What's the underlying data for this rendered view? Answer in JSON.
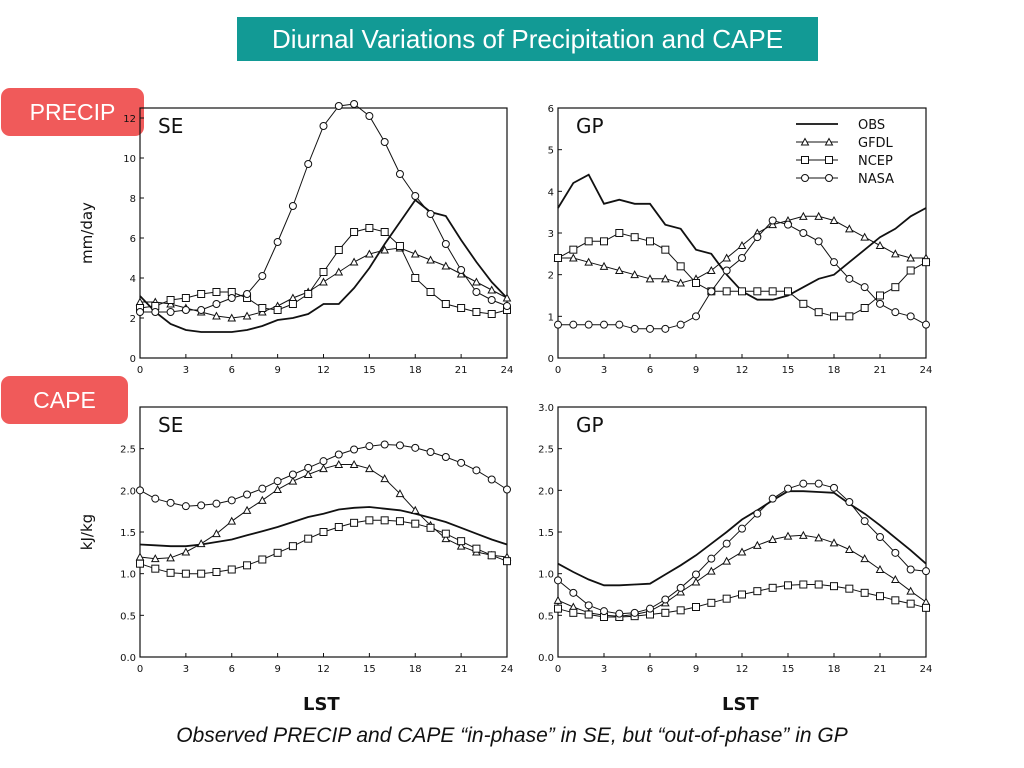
{
  "header": {
    "title": "Diurnal Variations of Precipitation and CAPE"
  },
  "tags": {
    "precip": "PRECIP",
    "cape": "CAPE"
  },
  "caption": "Observed PRECIP and CAPE “in-phase” in SE, but “out-of-phase” in GP",
  "xlabel": "LST",
  "chart_data": [
    {
      "type": "line",
      "title": "SE",
      "ylabel": "mm/day",
      "xticks": [
        "0",
        "3",
        "6",
        "9",
        "12",
        "15",
        "18",
        "21",
        "24"
      ],
      "yticks": [
        "0",
        "2",
        "4",
        "6",
        "8",
        "10",
        "12"
      ],
      "xlim": [
        0,
        24
      ],
      "ylim": [
        0,
        12.5
      ],
      "x": [
        0,
        1,
        2,
        3,
        4,
        5,
        6,
        7,
        8,
        9,
        10,
        11,
        12,
        13,
        14,
        15,
        16,
        17,
        18,
        19,
        20,
        21,
        22,
        23,
        24
      ],
      "series": [
        {
          "name": "OBS",
          "marker": "none",
          "values": [
            3.1,
            2.3,
            1.7,
            1.4,
            1.3,
            1.3,
            1.3,
            1.4,
            1.6,
            1.9,
            2.0,
            2.2,
            2.7,
            2.7,
            3.5,
            4.5,
            5.7,
            6.8,
            7.9,
            7.3,
            7.1,
            5.9,
            4.8,
            3.8,
            3.0
          ]
        },
        {
          "name": "GFDL",
          "marker": "triangle",
          "values": [
            2.8,
            2.8,
            2.7,
            2.5,
            2.3,
            2.1,
            2.0,
            2.1,
            2.3,
            2.6,
            3.0,
            3.3,
            3.8,
            4.3,
            4.8,
            5.2,
            5.4,
            5.5,
            5.2,
            4.9,
            4.6,
            4.2,
            3.8,
            3.4,
            3.0
          ]
        },
        {
          "name": "NCEP",
          "marker": "square",
          "values": [
            2.5,
            2.6,
            2.9,
            3.0,
            3.2,
            3.3,
            3.3,
            3.0,
            2.5,
            2.4,
            2.7,
            3.2,
            4.3,
            5.4,
            6.3,
            6.5,
            6.3,
            5.6,
            4.0,
            3.3,
            2.7,
            2.5,
            2.3,
            2.2,
            2.4
          ]
        },
        {
          "name": "NASA",
          "marker": "circle",
          "values": [
            2.3,
            2.3,
            2.3,
            2.4,
            2.4,
            2.7,
            3.0,
            3.2,
            4.1,
            5.8,
            7.6,
            9.7,
            11.6,
            12.6,
            12.7,
            12.1,
            10.8,
            9.2,
            8.1,
            7.2,
            5.7,
            4.4,
            3.3,
            2.9,
            2.6
          ]
        }
      ]
    },
    {
      "type": "line",
      "title": "GP",
      "ylabel": "",
      "xticks": [
        "0",
        "3",
        "6",
        "9",
        "12",
        "15",
        "18",
        "21",
        "24"
      ],
      "yticks": [
        "0",
        "1",
        "2",
        "3",
        "4",
        "5",
        "6"
      ],
      "xlim": [
        0,
        24
      ],
      "ylim": [
        0,
        6
      ],
      "legend": "top-right",
      "x": [
        0,
        1,
        2,
        3,
        4,
        5,
        6,
        7,
        8,
        9,
        10,
        11,
        12,
        13,
        14,
        15,
        16,
        17,
        18,
        19,
        20,
        21,
        22,
        23,
        24
      ],
      "series": [
        {
          "name": "OBS",
          "marker": "none",
          "values": [
            3.6,
            4.2,
            4.4,
            3.7,
            3.8,
            3.7,
            3.7,
            3.2,
            3.1,
            2.6,
            2.5,
            2.0,
            1.6,
            1.4,
            1.4,
            1.5,
            1.7,
            1.9,
            2.0,
            2.3,
            2.6,
            2.9,
            3.1,
            3.4,
            3.6
          ]
        },
        {
          "name": "GFDL",
          "marker": "triangle",
          "values": [
            2.4,
            2.4,
            2.3,
            2.2,
            2.1,
            2.0,
            1.9,
            1.9,
            1.8,
            1.9,
            2.1,
            2.4,
            2.7,
            3.0,
            3.2,
            3.3,
            3.4,
            3.4,
            3.3,
            3.1,
            2.9,
            2.7,
            2.5,
            2.4,
            2.4
          ]
        },
        {
          "name": "NCEP",
          "marker": "square",
          "values": [
            2.4,
            2.6,
            2.8,
            2.8,
            3.0,
            2.9,
            2.8,
            2.6,
            2.2,
            1.8,
            1.6,
            1.6,
            1.6,
            1.6,
            1.6,
            1.6,
            1.3,
            1.1,
            1.0,
            1.0,
            1.2,
            1.5,
            1.7,
            2.1,
            2.3
          ]
        },
        {
          "name": "NASA",
          "marker": "circle",
          "values": [
            0.8,
            0.8,
            0.8,
            0.8,
            0.8,
            0.7,
            0.7,
            0.7,
            0.8,
            1.0,
            1.6,
            2.1,
            2.4,
            2.9,
            3.3,
            3.2,
            3.0,
            2.8,
            2.3,
            1.9,
            1.7,
            1.3,
            1.1,
            1.0,
            0.8
          ]
        }
      ]
    },
    {
      "type": "line",
      "title": "SE",
      "ylabel": "kJ/kg",
      "xticks": [
        "0",
        "3",
        "6",
        "9",
        "12",
        "15",
        "18",
        "21",
        "24"
      ],
      "yticks": [
        "0.0",
        "0.5",
        "1.0",
        "1.5",
        "2.0",
        "2.5"
      ],
      "xlim": [
        0,
        24
      ],
      "ylim": [
        0,
        3.0
      ],
      "x": [
        0,
        1,
        2,
        3,
        4,
        5,
        6,
        7,
        8,
        9,
        10,
        11,
        12,
        13,
        14,
        15,
        16,
        17,
        18,
        19,
        20,
        21,
        22,
        23,
        24
      ],
      "series": [
        {
          "name": "OBS",
          "marker": "none",
          "values": [
            1.35,
            1.34,
            1.33,
            1.33,
            1.35,
            1.38,
            1.41,
            1.46,
            1.51,
            1.56,
            1.62,
            1.68,
            1.72,
            1.77,
            1.79,
            1.8,
            1.78,
            1.76,
            1.72,
            1.67,
            1.62,
            1.55,
            1.48,
            1.41,
            1.35
          ]
        },
        {
          "name": "GFDL",
          "marker": "triangle",
          "values": [
            1.2,
            1.18,
            1.19,
            1.26,
            1.36,
            1.48,
            1.63,
            1.76,
            1.88,
            2.01,
            2.11,
            2.19,
            2.26,
            2.31,
            2.31,
            2.26,
            2.14,
            1.96,
            1.76,
            1.58,
            1.42,
            1.33,
            1.26,
            1.22,
            1.2
          ]
        },
        {
          "name": "NCEP",
          "marker": "square",
          "values": [
            1.12,
            1.06,
            1.01,
            1.0,
            1.0,
            1.02,
            1.05,
            1.1,
            1.17,
            1.25,
            1.33,
            1.42,
            1.5,
            1.56,
            1.61,
            1.64,
            1.64,
            1.63,
            1.6,
            1.55,
            1.48,
            1.39,
            1.3,
            1.22,
            1.15
          ]
        },
        {
          "name": "NASA",
          "marker": "circle",
          "values": [
            2.0,
            1.9,
            1.85,
            1.81,
            1.82,
            1.84,
            1.88,
            1.95,
            2.02,
            2.11,
            2.19,
            2.27,
            2.35,
            2.43,
            2.49,
            2.53,
            2.55,
            2.54,
            2.51,
            2.46,
            2.4,
            2.33,
            2.24,
            2.13,
            2.01
          ]
        }
      ]
    },
    {
      "type": "line",
      "title": "GP",
      "ylabel": "",
      "xticks": [
        "0",
        "3",
        "6",
        "9",
        "12",
        "15",
        "18",
        "21",
        "24"
      ],
      "yticks": [
        "0.0",
        "0.5",
        "1.0",
        "1.5",
        "2.0",
        "2.5",
        "3.0"
      ],
      "xlim": [
        0,
        24
      ],
      "ylim": [
        0,
        3.0
      ],
      "x": [
        0,
        1,
        2,
        3,
        4,
        5,
        6,
        7,
        8,
        9,
        10,
        11,
        12,
        13,
        14,
        15,
        16,
        17,
        18,
        19,
        20,
        21,
        22,
        23,
        24
      ],
      "series": [
        {
          "name": "OBS",
          "marker": "none",
          "values": [
            1.12,
            1.02,
            0.93,
            0.86,
            0.86,
            0.87,
            0.88,
            0.99,
            1.1,
            1.22,
            1.36,
            1.5,
            1.65,
            1.76,
            1.88,
            1.99,
            1.99,
            1.98,
            1.97,
            1.84,
            1.72,
            1.58,
            1.43,
            1.28,
            1.12
          ]
        },
        {
          "name": "GFDL",
          "marker": "triangle",
          "values": [
            0.68,
            0.6,
            0.53,
            0.5,
            0.49,
            0.51,
            0.55,
            0.65,
            0.78,
            0.9,
            1.03,
            1.15,
            1.26,
            1.34,
            1.41,
            1.45,
            1.46,
            1.43,
            1.37,
            1.29,
            1.18,
            1.05,
            0.93,
            0.79,
            0.66
          ]
        },
        {
          "name": "NCEP",
          "marker": "square",
          "values": [
            0.58,
            0.53,
            0.51,
            0.48,
            0.48,
            0.49,
            0.51,
            0.53,
            0.56,
            0.6,
            0.65,
            0.7,
            0.75,
            0.79,
            0.83,
            0.86,
            0.87,
            0.87,
            0.85,
            0.82,
            0.77,
            0.73,
            0.68,
            0.64,
            0.59
          ]
        },
        {
          "name": "NASA",
          "marker": "circle",
          "values": [
            0.92,
            0.77,
            0.62,
            0.55,
            0.52,
            0.53,
            0.58,
            0.69,
            0.83,
            0.99,
            1.18,
            1.36,
            1.54,
            1.72,
            1.9,
            2.02,
            2.08,
            2.08,
            2.03,
            1.86,
            1.63,
            1.44,
            1.25,
            1.05,
            1.03
          ]
        }
      ]
    }
  ]
}
